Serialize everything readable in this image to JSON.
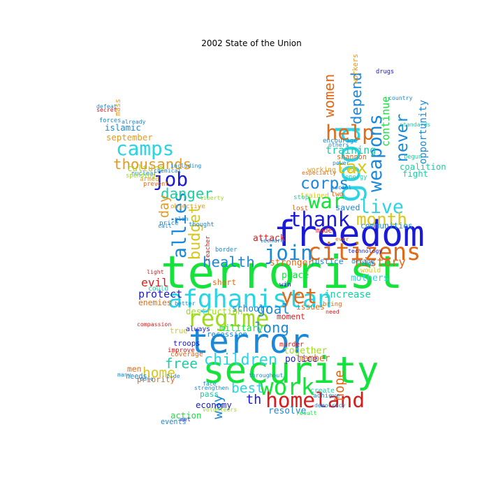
{
  "title": "2002 State of the Union",
  "colors": [
    "#13e33b",
    "#1a1ad6",
    "#1b88d8",
    "#2bd4e4",
    "#9edb1c",
    "#d8c71a",
    "#e06a18",
    "#dc1a1a",
    "#e39a1f",
    "#1bcfa3"
  ],
  "words": [
    {
      "text": "terrorist",
      "weight": 1.0,
      "color": "#13e33b"
    },
    {
      "text": "security",
      "weight": 0.82,
      "color": "#13e33b"
    },
    {
      "text": "freedom",
      "weight": 0.8,
      "color": "#1a1ad6"
    },
    {
      "text": "terror",
      "weight": 0.75,
      "color": "#1b88d8"
    },
    {
      "text": "good",
      "weight": 0.72,
      "color": "#2bd4e4"
    },
    {
      "text": "afghanistan",
      "weight": 0.55,
      "color": "#2bd4e4"
    },
    {
      "text": "citizens",
      "weight": 0.52,
      "color": "#e06a18"
    },
    {
      "text": "regime",
      "weight": 0.5,
      "color": "#9edb1c"
    },
    {
      "text": "work",
      "weight": 0.5,
      "color": "#13e33b"
    },
    {
      "text": "homeland",
      "weight": 0.45,
      "color": "#dc1a1a"
    },
    {
      "text": "join",
      "weight": 0.44,
      "color": "#1b88d8"
    },
    {
      "text": "thank",
      "weight": 0.44,
      "color": "#1a1ad6"
    },
    {
      "text": "war",
      "weight": 0.44,
      "color": "#13e33b"
    },
    {
      "text": "help",
      "weight": 0.44,
      "color": "#e06a18"
    },
    {
      "text": "yet",
      "weight": 0.44,
      "color": "#e06a18"
    },
    {
      "text": "camps",
      "weight": 0.42,
      "color": "#2bd4e4"
    },
    {
      "text": "job",
      "weight": 0.42,
      "color": "#1a1ad6"
    },
    {
      "text": "allies",
      "weight": 0.4,
      "color": "#1b88d8"
    },
    {
      "text": "weapons",
      "weight": 0.4,
      "color": "#1b88d8"
    },
    {
      "text": "live",
      "weight": 0.4,
      "color": "#2bd4e4"
    },
    {
      "text": "tax",
      "weight": 0.38,
      "color": "#d8c71a"
    },
    {
      "text": "month",
      "weight": 0.36,
      "color": "#d8c71a"
    },
    {
      "text": "corps",
      "weight": 0.34,
      "color": "#1b88d8"
    },
    {
      "text": "never",
      "weight": 0.34,
      "color": "#1b88d8"
    },
    {
      "text": "budget",
      "weight": 0.32,
      "color": "#d8c71a"
    },
    {
      "text": "children",
      "weight": 0.32,
      "color": "#2bd4e4"
    },
    {
      "text": "thousands",
      "weight": 0.3,
      "color": "#e39a1f"
    },
    {
      "text": "danger",
      "weight": 0.3,
      "color": "#1bcfa3"
    },
    {
      "text": "health",
      "weight": 0.3,
      "color": "#1b88d8"
    },
    {
      "text": "long",
      "weight": 0.3,
      "color": "#1b88d8"
    },
    {
      "text": "depend",
      "weight": 0.3,
      "color": "#1b88d8"
    },
    {
      "text": "women",
      "weight": 0.3,
      "color": "#e06a18"
    },
    {
      "text": "best",
      "weight": 0.28,
      "color": "#2bd4e4"
    },
    {
      "text": "free",
      "weight": 0.28,
      "color": "#1bcfa3"
    },
    {
      "text": "home",
      "weight": 0.28,
      "color": "#d8c71a"
    },
    {
      "text": "goal",
      "weight": 0.28,
      "color": "#1b88d8"
    },
    {
      "text": "way",
      "weight": 0.28,
      "color": "#1b88d8"
    },
    {
      "text": "th",
      "weight": 0.26,
      "color": "#1a1ad6"
    },
    {
      "text": "hope",
      "weight": 0.26,
      "color": "#e06a18"
    },
    {
      "text": "day",
      "weight": 0.26,
      "color": "#e39a1f"
    },
    {
      "text": "history",
      "weight": 0.24,
      "color": "#e06a18"
    },
    {
      "text": "evil",
      "weight": 0.22,
      "color": "#dc1a1a"
    },
    {
      "text": "protect",
      "weight": 0.2,
      "color": "#1a1ad6"
    },
    {
      "text": "training",
      "weight": 0.2,
      "color": "#1bcfa3"
    },
    {
      "text": "continue",
      "weight": 0.2,
      "color": "#13e33b"
    },
    {
      "text": "opportunity",
      "weight": 0.18,
      "color": "#1b88d8"
    },
    {
      "text": "increase",
      "weight": 0.18,
      "color": "#1bcfa3"
    },
    {
      "text": "mothers",
      "weight": 0.16,
      "color": "#2bd4e4"
    },
    {
      "text": "peace",
      "weight": 0.16,
      "color": "#13e33b"
    },
    {
      "text": "stronger",
      "weight": 0.16,
      "color": "#e06a18"
    },
    {
      "text": "attack",
      "weight": 0.16,
      "color": "#dc1a1a"
    },
    {
      "text": "military",
      "weight": 0.16,
      "color": "#13e33b"
    },
    {
      "text": "school",
      "weight": 0.16,
      "color": "#1b88d8"
    },
    {
      "text": "police",
      "weight": 0.16,
      "color": "#1a1ad6"
    },
    {
      "text": "together",
      "weight": 0.16,
      "color": "#9edb1c"
    },
    {
      "text": "member",
      "weight": 0.16,
      "color": "#e06a18"
    },
    {
      "text": "resolve",
      "weight": 0.16,
      "color": "#1b88d8"
    },
    {
      "text": "economy",
      "weight": 0.15,
      "color": "#1a1ad6"
    },
    {
      "text": "action",
      "weight": 0.15,
      "color": "#13e33b"
    },
    {
      "text": "islamic",
      "weight": 0.15,
      "color": "#1b88d8"
    },
    {
      "text": "september",
      "weight": 0.15,
      "color": "#e39a1f"
    },
    {
      "text": "culture",
      "weight": 0.15,
      "color": "#9edb1c"
    },
    {
      "text": "destruction",
      "weight": 0.15,
      "color": "#9edb1c"
    },
    {
      "text": "coalition",
      "weight": 0.15,
      "color": "#1bcfa3"
    },
    {
      "text": "fight",
      "weight": 0.15,
      "color": "#1bcfa3"
    },
    {
      "text": "saved",
      "weight": 0.14,
      "color": "#1b88d8"
    },
    {
      "text": "communities",
      "weight": 0.13,
      "color": "#1b88d8"
    },
    {
      "text": "justice",
      "weight": 0.13,
      "color": "#1b88d8"
    },
    {
      "text": "moment",
      "weight": 0.13,
      "color": "#dc1a1a"
    },
    {
      "text": "issues",
      "weight": 0.13,
      "color": "#e06a18"
    },
    {
      "text": "enemies",
      "weight": 0.13,
      "color": "#e06a18"
    },
    {
      "text": "priority",
      "weight": 0.13,
      "color": "#e06a18"
    },
    {
      "text": "men",
      "weight": 0.13,
      "color": "#e06a18"
    },
    {
      "text": "pass",
      "weight": 0.13,
      "color": "#1bcfa3"
    },
    {
      "text": "short",
      "weight": 0.13,
      "color": "#e06a18"
    },
    {
      "text": "recession",
      "weight": 0.12,
      "color": "#1b88d8"
    },
    {
      "text": "troops",
      "weight": 0.12,
      "color": "#1a1ad6"
    },
    {
      "text": "true",
      "weight": 0.12,
      "color": "#d8c71a"
    },
    {
      "text": "events",
      "weight": 0.11,
      "color": "#1b88d8"
    },
    {
      "text": "needs",
      "weight": 0.11,
      "color": "#1b88d8"
    },
    {
      "text": "shannon",
      "weight": 0.11,
      "color": "#e06a18"
    },
    {
      "text": "workers",
      "weight": 0.11,
      "color": "#e39a1f"
    },
    {
      "text": "mass",
      "weight": 0.11,
      "color": "#e39a1f"
    },
    {
      "text": "trained",
      "weight": 0.1,
      "color": "#d8c71a"
    },
    {
      "text": "lost",
      "weight": 0.1,
      "color": "#e06a18"
    },
    {
      "text": "made",
      "weight": 0.1,
      "color": "#dc1a1a"
    },
    {
      "text": "two",
      "weight": 0.1,
      "color": "#e06a18"
    },
    {
      "text": "would",
      "weight": 0.1,
      "color": "#d8c71a"
    },
    {
      "text": "working",
      "weight": 0.1,
      "color": "#e39a1f"
    },
    {
      "text": "create",
      "weight": 0.1,
      "color": "#1bcfa3"
    },
    {
      "text": "murder",
      "weight": 0.1,
      "color": "#dc1a1a"
    },
    {
      "text": "coverage",
      "weight": 0.1,
      "color": "#e06a18"
    },
    {
      "text": "always",
      "weight": 0.1,
      "color": "#1a1ad6"
    },
    {
      "text": "could",
      "weight": 0.1,
      "color": "#1bcfa3"
    },
    {
      "text": "stop",
      "weight": 0.09,
      "color": "#1bcfa3"
    },
    {
      "text": "win",
      "weight": 0.09,
      "color": "#1a1ad6"
    },
    {
      "text": "armed",
      "weight": 0.09,
      "color": "#e39a1f"
    },
    {
      "text": "price",
      "weight": 0.09,
      "color": "#1b88d8"
    },
    {
      "text": "encourage",
      "weight": 0.09,
      "color": "#1b88d8"
    },
    {
      "text": "bring",
      "weight": 0.09,
      "color": "#e06a18"
    },
    {
      "text": "achieve",
      "weight": 0.09,
      "color": "#1b88d8"
    },
    {
      "text": "improve",
      "weight": 0.09,
      "color": "#dc1a1a"
    },
    {
      "text": "decade",
      "weight": 0.09,
      "color": "#1b88d8"
    },
    {
      "text": "objective",
      "weight": 0.09,
      "color": "#e39a1f"
    },
    {
      "text": "thought",
      "weight": 0.08,
      "color": "#1b88d8"
    },
    {
      "text": "teacher",
      "weight": 0.08,
      "color": "#dc1a1a"
    },
    {
      "text": "drugs",
      "weight": 0.08,
      "color": "#1a1ad6"
    },
    {
      "text": "trade",
      "weight": 0.08,
      "color": "#d8c71a"
    },
    {
      "text": "energy",
      "weight": 0.08,
      "color": "#1bcfa3"
    },
    {
      "text": "border",
      "weight": 0.08,
      "color": "#1b88d8"
    },
    {
      "text": "nuclear",
      "weight": 0.08,
      "color": "#1b88d8"
    },
    {
      "text": "spending",
      "weight": 0.08,
      "color": "#9edb1c"
    },
    {
      "text": "prevent",
      "weight": 0.08,
      "color": "#e06a18"
    },
    {
      "text": "forces",
      "weight": 0.08,
      "color": "#1b88d8"
    },
    {
      "text": "begun",
      "weight": 0.08,
      "color": "#1bcfa3"
    },
    {
      "text": "defeat",
      "weight": 0.07,
      "color": "#1b88d8"
    },
    {
      "text": "tide",
      "weight": 0.07,
      "color": "#1b88d8"
    },
    {
      "text": "met",
      "weight": 0.07,
      "color": "#1a1ad6"
    },
    {
      "text": "chemical",
      "weight": 0.07,
      "color": "#1b88d8"
    },
    {
      "text": "including",
      "weight": 0.07,
      "color": "#1b88d8"
    },
    {
      "text": "already",
      "weight": 0.07,
      "color": "#1b88d8"
    },
    {
      "text": "liberty",
      "weight": 0.07,
      "color": "#9edb1c"
    },
    {
      "text": "face",
      "weight": 0.07,
      "color": "#1b88d8"
    },
    {
      "text": "call",
      "weight": 0.07,
      "color": "#1b88d8"
    },
    {
      "text": "light",
      "weight": 0.07,
      "color": "#dc1a1a"
    },
    {
      "text": "better",
      "weight": 0.07,
      "color": "#1b88d8"
    },
    {
      "text": "standards",
      "weight": 0.07,
      "color": "#1bcfa3"
    },
    {
      "text": "others",
      "weight": 0.07,
      "color": "#1b88d8"
    },
    {
      "text": "especially",
      "weight": 0.07,
      "color": "#e06a18"
    },
    {
      "text": "power",
      "weight": 0.07,
      "color": "#1b88d8"
    },
    {
      "text": "technology",
      "weight": 0.07,
      "color": "#1a1ad6"
    },
    {
      "text": "look",
      "weight": 0.07,
      "color": "#1b88d8"
    },
    {
      "text": "democracy",
      "weight": 0.07,
      "color": "#1b88d8"
    },
    {
      "text": "result",
      "weight": 0.07,
      "color": "#13e33b"
    },
    {
      "text": "volunteers",
      "weight": 0.07,
      "color": "#9edb1c"
    },
    {
      "text": "strengthen",
      "weight": 0.07,
      "color": "#1b88d8"
    },
    {
      "text": "compassion",
      "weight": 0.07,
      "color": "#dc1a1a"
    },
    {
      "text": "throughout",
      "weight": 0.07,
      "color": "#1b88d8"
    },
    {
      "text": "need",
      "weight": 0.07,
      "color": "#dc1a1a"
    },
    {
      "text": "many",
      "weight": 0.07,
      "color": "#1b88d8"
    },
    {
      "text": "secret",
      "weight": 0.07,
      "color": "#dc1a1a"
    },
    {
      "text": "social",
      "weight": 0.07,
      "color": "#1b88d8"
    },
    {
      "text": "leonard",
      "weight": 0.07,
      "color": "#1b88d8"
    },
    {
      "text": "ever",
      "weight": 0.07,
      "color": "#e06a18"
    },
    {
      "text": "plan",
      "weight": 0.07,
      "color": "#1b88d8"
    },
    {
      "text": "country",
      "weight": 0.07,
      "color": "#1b88d8"
    },
    {
      "text": "done",
      "weight": 0.07,
      "color": "#1b88d8"
    }
  ]
}
